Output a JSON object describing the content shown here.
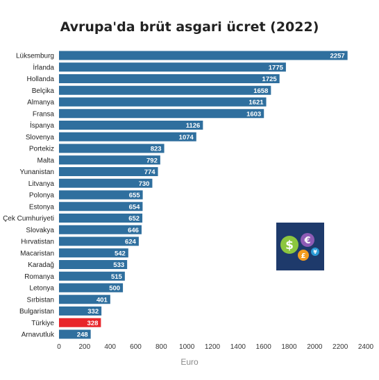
{
  "chart_data": {
    "type": "bar",
    "orientation": "horizontal",
    "title": "Avrupa'da brüt asgari ücret (2022)",
    "xlabel": "Euro",
    "ylabel": "",
    "xlim": [
      0,
      2400
    ],
    "x_ticks": [
      "0",
      "200",
      "400",
      "600",
      "800",
      "1000",
      "1200",
      "1400",
      "1600",
      "1800",
      "2000",
      "2200",
      "2400"
    ],
    "categories": [
      "Lüksemburg",
      "İrlanda",
      "Hollanda",
      "Belçika",
      "Almanya",
      "Fransa",
      "İspanya",
      "Slovenya",
      "Portekiz",
      "Malta",
      "Yunanistan",
      "Litvanya",
      "Polonya",
      "Estonya",
      "Çek Cumhuriyeti",
      "Slovakya",
      "Hırvatistan",
      "Macaristan",
      "Karadağ",
      "Romanya",
      "Letonya",
      "Sırbistan",
      "Bulgaristan",
      "Türkiye",
      "Arnavutluk"
    ],
    "values": [
      2257,
      1775,
      1725,
      1658,
      1621,
      1603,
      1126,
      1074,
      823,
      792,
      774,
      730,
      655,
      654,
      652,
      646,
      624,
      542,
      533,
      515,
      500,
      401,
      332,
      328,
      248
    ],
    "value_labels": [
      "2257",
      "1775",
      "1725",
      "1658",
      "1621",
      "1603",
      "1126",
      "1074",
      "823",
      "792",
      "774",
      "730",
      "655",
      "654",
      "652",
      "646",
      "624",
      "542",
      "533",
      "515",
      "500",
      "401",
      "332",
      "328",
      "248"
    ],
    "highlight_category": "Türkiye",
    "bar_color": "#2f6f9e",
    "highlight_color": "#e8262b",
    "grid": false,
    "legend": "none"
  },
  "logo": {
    "icon": "currency-exchange-icon",
    "background": "#1e3a6b"
  }
}
